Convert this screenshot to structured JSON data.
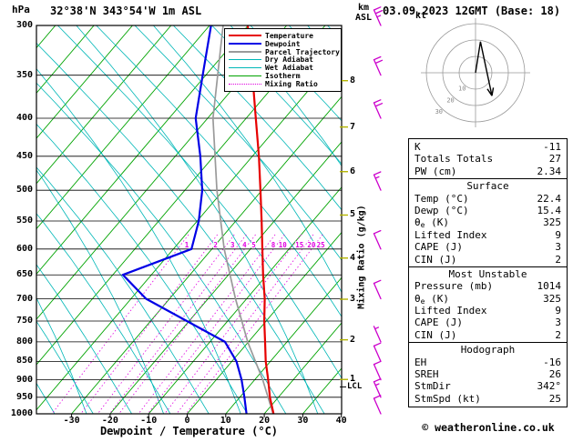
{
  "header": {
    "pressure_unit": "hPa",
    "station_title": "32°38'N 343°54'W 1m ASL",
    "datetime": "03.09.2023 12GMT (Base: 18)",
    "altitude_unit": [
      "km",
      "ASL"
    ]
  },
  "legend": {
    "items": [
      {
        "label": "Temperature",
        "color": "#e60000",
        "line_style": "solid",
        "line_width": 2
      },
      {
        "label": "Dewpoint",
        "color": "#0000e6",
        "line_style": "solid",
        "line_width": 2
      },
      {
        "label": "Parcel Trajectory",
        "color": "#9a9a9a",
        "line_style": "solid",
        "line_width": 2
      },
      {
        "label": "Dry Adiabat",
        "color": "#00b7b7",
        "line_style": "solid",
        "line_width": 1
      },
      {
        "label": "Wet Adiabat",
        "color": "#00b7b7",
        "line_style": "solid",
        "line_width": 1
      },
      {
        "label": "Isotherm",
        "color": "#00a300",
        "line_style": "solid",
        "line_width": 1
      },
      {
        "label": "Mixing Ratio",
        "color": "#e000e0",
        "line_style": "dotted",
        "line_width": 1
      }
    ]
  },
  "chart_data": {
    "type": "line",
    "projection": "skew-t-log-p",
    "title": "Skew-T log-P sounding",
    "xlabel": "Dewpoint / Temperature (°C)",
    "x_ticks_c": [
      -30,
      -20,
      -10,
      0,
      10,
      20,
      30,
      40
    ],
    "pressure_ticks_hpa": [
      300,
      350,
      400,
      450,
      500,
      550,
      600,
      650,
      700,
      750,
      800,
      850,
      900,
      950,
      1000
    ],
    "pressure_range_hpa": [
      300,
      1000
    ],
    "isotherm_step_c": 10,
    "grid": true,
    "km_asl_ticks": [
      {
        "km": 8,
        "hpa": 356
      },
      {
        "km": 7,
        "hpa": 411
      },
      {
        "km": 6,
        "hpa": 472
      },
      {
        "km": 5,
        "hpa": 540
      },
      {
        "km": 4,
        "hpa": 617
      },
      {
        "km": 3,
        "hpa": 701
      },
      {
        "km": 2,
        "hpa": 795
      },
      {
        "km": 1,
        "hpa": 899
      }
    ],
    "lcl": {
      "label": "LCL",
      "hpa": 920
    },
    "mixing_ratio": {
      "axis_label": "Mixing Ratio (g/kg)",
      "values_gkg": [
        1,
        2,
        3,
        4,
        5,
        8,
        10,
        15,
        20,
        25
      ]
    },
    "colors": {
      "isotherm": "#00a300",
      "dry_adiabat": "#00b7b7",
      "wet_adiabat": "#00b7b7",
      "mixing_ratio": "#e000e0",
      "grid": "#000000",
      "km_tick": "#b4b400",
      "wind_barb": "#cc00cc"
    },
    "series": [
      {
        "name": "Temperature",
        "color": "#e60000",
        "points_p_t": [
          [
            1000,
            22.4
          ],
          [
            950,
            17.8
          ],
          [
            900,
            13.5
          ],
          [
            850,
            8.8
          ],
          [
            800,
            4.3
          ],
          [
            750,
            -0.5
          ],
          [
            700,
            -5.3
          ],
          [
            650,
            -11.0
          ],
          [
            600,
            -16.9
          ],
          [
            550,
            -23.3
          ],
          [
            500,
            -30.4
          ],
          [
            450,
            -38.3
          ],
          [
            400,
            -47.5
          ],
          [
            350,
            -57.9
          ],
          [
            300,
            -70.1
          ]
        ]
      },
      {
        "name": "Dewpoint",
        "color": "#0000e6",
        "points_p_t": [
          [
            1000,
            15.4
          ],
          [
            950,
            11.2
          ],
          [
            900,
            6.6
          ],
          [
            850,
            1.2
          ],
          [
            800,
            -6.1
          ],
          [
            750,
            -20.6
          ],
          [
            700,
            -36.1
          ],
          [
            650,
            -47.4
          ],
          [
            600,
            -35.3
          ],
          [
            550,
            -39.6
          ],
          [
            500,
            -45.5
          ],
          [
            450,
            -53.5
          ],
          [
            400,
            -63.1
          ],
          [
            350,
            -70.8
          ],
          [
            300,
            -79.6
          ]
        ]
      },
      {
        "name": "Parcel Trajectory",
        "color": "#9a9a9a",
        "points_p_t": [
          [
            1000,
            22.3
          ],
          [
            900,
            12.1
          ],
          [
            800,
            -0.2
          ],
          [
            700,
            -12.9
          ],
          [
            600,
            -26.8
          ],
          [
            500,
            -41.7
          ],
          [
            400,
            -58.6
          ],
          [
            300,
            -76.5
          ]
        ]
      }
    ],
    "wind_barbs": {
      "color": "#cc00cc",
      "levels": [
        {
          "hpa": 1000,
          "kt": 10
        },
        {
          "hpa": 950,
          "kt": 15
        },
        {
          "hpa": 900,
          "kt": 10
        },
        {
          "hpa": 850,
          "kt": 10
        },
        {
          "hpa": 800,
          "kt": 5
        },
        {
          "hpa": 700,
          "kt": 10
        },
        {
          "hpa": 600,
          "kt": 10
        },
        {
          "hpa": 500,
          "kt": 15
        },
        {
          "hpa": 400,
          "kt": 20
        },
        {
          "hpa": 350,
          "kt": 20
        },
        {
          "hpa": 300,
          "kt": 25
        }
      ]
    }
  },
  "hodograph": {
    "unit_label": "kt",
    "rings_kt": [
      10,
      20,
      30
    ],
    "trace_kt": [
      [
        0,
        0
      ],
      [
        3,
        19
      ],
      [
        10,
        -14
      ]
    ]
  },
  "stats": {
    "sections": [
      {
        "header": null,
        "rows": [
          [
            "K",
            "-11"
          ],
          [
            "Totals Totals",
            "27"
          ],
          [
            "PW (cm)",
            "2.34"
          ]
        ]
      },
      {
        "header": "Surface",
        "rows": [
          [
            "Temp (°C)",
            "22.4"
          ],
          [
            "Dewp (°C)",
            "15.4"
          ],
          [
            "θe (K)",
            "325"
          ],
          [
            "Lifted Index",
            "9"
          ],
          [
            "CAPE (J)",
            "3"
          ],
          [
            "CIN (J)",
            "2"
          ]
        ]
      },
      {
        "header": "Most Unstable",
        "rows": [
          [
            "Pressure (mb)",
            "1014"
          ],
          [
            "θe (K)",
            "325"
          ],
          [
            "Lifted Index",
            "9"
          ],
          [
            "CAPE (J)",
            "3"
          ],
          [
            "CIN (J)",
            "2"
          ]
        ]
      },
      {
        "header": "Hodograph",
        "rows": [
          [
            "EH",
            "-16"
          ],
          [
            "SREH",
            "26"
          ],
          [
            "StmDir",
            "342°"
          ],
          [
            "StmSpd (kt)",
            "25"
          ]
        ]
      }
    ]
  },
  "footer": {
    "copyright": "© weatheronline.co.uk"
  }
}
